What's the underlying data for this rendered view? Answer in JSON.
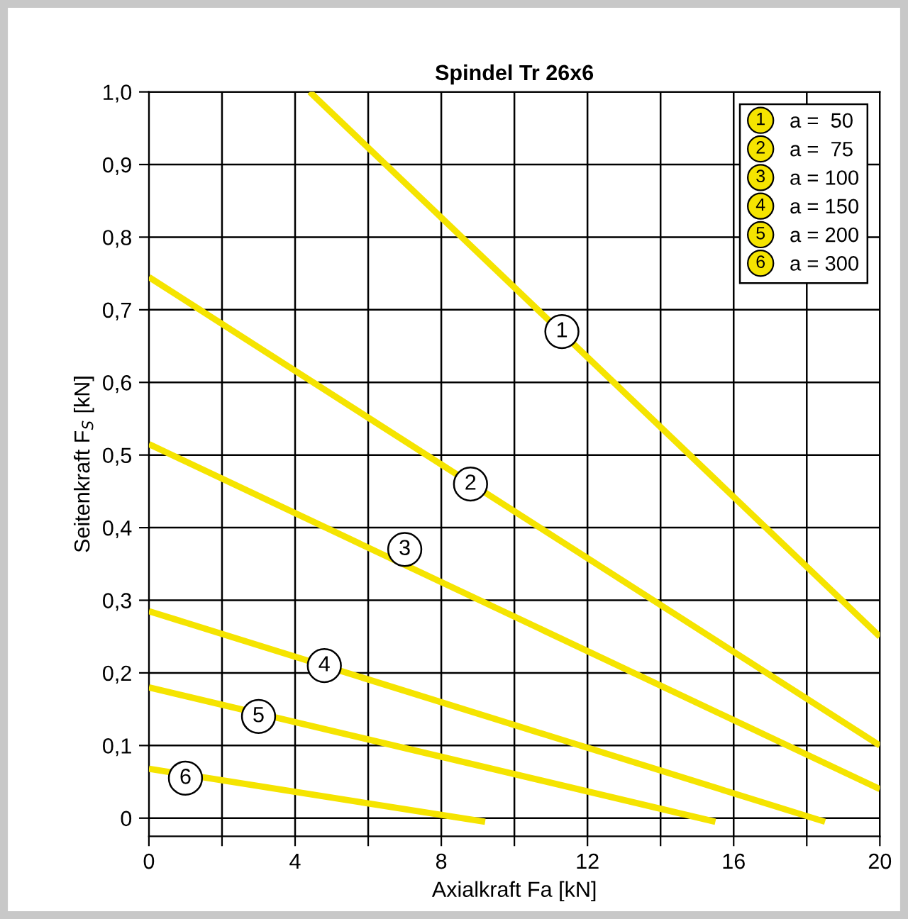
{
  "chart_data": {
    "type": "line",
    "title": "Spindel Tr 26x6",
    "xlabel": "Axialkraft Fa [kN]",
    "ylabel": "Seitenkraft F$_{S}$ [kN]",
    "series": [
      {
        "name": "a =  50",
        "color": "#f5e400",
        "x": [
          4.4,
          20
        ],
        "values": [
          1.0,
          0.25
        ]
      },
      {
        "name": "a =  75",
        "color": "#f5e400",
        "x": [
          0,
          20
        ],
        "values": [
          0.745,
          0.1
        ]
      },
      {
        "name": "a = 100",
        "color": "#f5e400",
        "x": [
          0,
          20
        ],
        "values": [
          0.515,
          0.04
        ]
      },
      {
        "name": "a = 150",
        "color": "#f5e400",
        "x": [
          0,
          18.5
        ],
        "values": [
          0.285,
          -0.005
        ]
      },
      {
        "name": "a = 200",
        "color": "#f5e400",
        "x": [
          0,
          15.5
        ],
        "values": [
          0.18,
          -0.005
        ]
      },
      {
        "name": "a = 300",
        "color": "#f5e400",
        "x": [
          0,
          9.2
        ],
        "values": [
          0.068,
          -0.005
        ]
      }
    ],
    "annotations": [
      {
        "text": "1",
        "x": 11.3,
        "y": 0.67
      },
      {
        "text": "2",
        "x": 8.8,
        "y": 0.46
      },
      {
        "text": "3",
        "x": 7.0,
        "y": 0.37
      },
      {
        "text": "4",
        "x": 4.8,
        "y": 0.21
      },
      {
        "text": "5",
        "x": 3.0,
        "y": 0.14
      },
      {
        "text": "6",
        "x": 1.0,
        "y": 0.055
      }
    ],
    "xlim": [
      0,
      20
    ],
    "ylim": [
      -0.025,
      1.0
    ],
    "xticks": [
      0,
      {
        "value": 2,
        "label": null
      },
      4,
      {
        "value": 6,
        "label": null
      },
      8,
      {
        "value": 10,
        "label": null
      },
      12,
      {
        "value": 14,
        "label": null
      },
      16,
      {
        "value": 18,
        "label": null
      },
      20
    ],
    "yticks": [
      0,
      {
        "value": 0.1,
        "label": "0,1"
      },
      {
        "value": 0.2,
        "label": "0,2"
      },
      {
        "value": 0.3,
        "label": "0,3"
      },
      {
        "value": 0.4,
        "label": "0,4"
      },
      {
        "value": 0.5,
        "label": "0,5"
      },
      {
        "value": 0.6,
        "label": "0,6"
      },
      {
        "value": 0.7,
        "label": "0,7"
      },
      {
        "value": 0.8,
        "label": "0,8"
      },
      {
        "value": 0.9,
        "label": "0,9"
      },
      {
        "value": 1.0,
        "label": "1,0"
      }
    ],
    "grid": true,
    "legend": "top right"
  }
}
